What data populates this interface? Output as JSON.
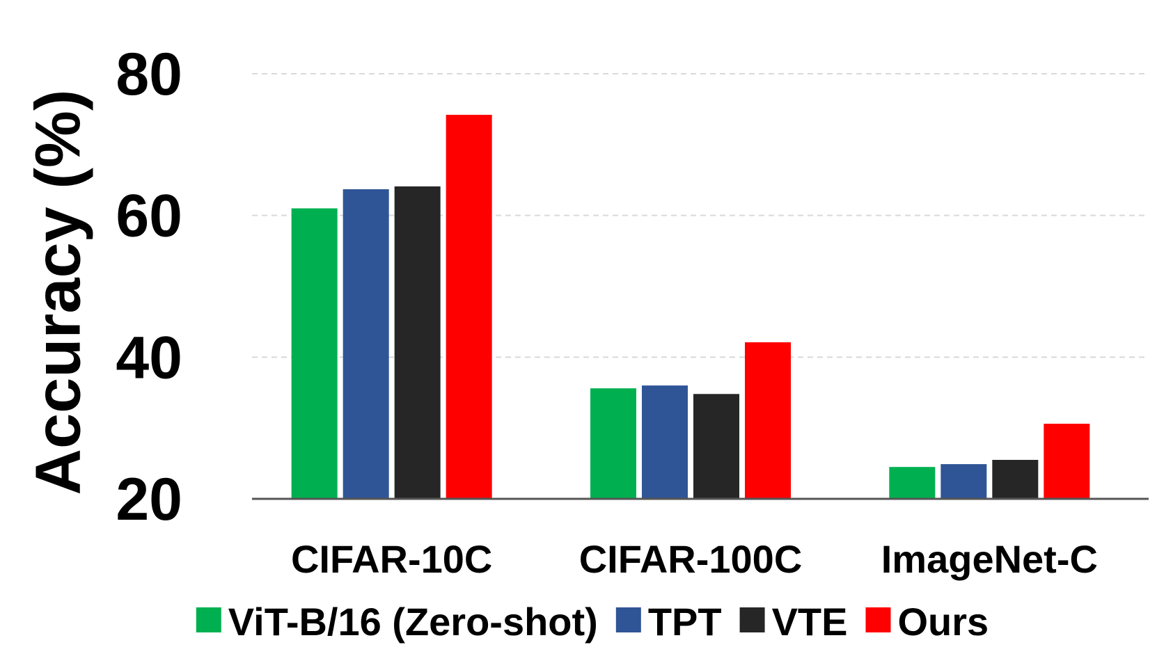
{
  "chart_data": {
    "type": "bar",
    "title": "",
    "xlabel": "",
    "ylabel": "Accuracy (%)",
    "ylim": [
      20,
      80
    ],
    "yticks": [
      20,
      40,
      60,
      80
    ],
    "grid": true,
    "legend_position": "bottom",
    "categories": [
      "CIFAR-10C",
      "CIFAR-100C",
      "ImageNet-C"
    ],
    "series": [
      {
        "name": "ViT-B/16 (Zero-shot)",
        "color": "#00b050",
        "values": [
          61.0,
          35.6,
          24.5
        ]
      },
      {
        "name": "TPT",
        "color": "#2f5597",
        "values": [
          63.7,
          36.0,
          24.9
        ]
      },
      {
        "name": "VTE",
        "color": "#262626",
        "values": [
          64.1,
          34.8,
          25.5
        ]
      },
      {
        "name": "Ours",
        "color": "#ff0000",
        "values": [
          74.2,
          42.1,
          30.6
        ]
      }
    ]
  }
}
